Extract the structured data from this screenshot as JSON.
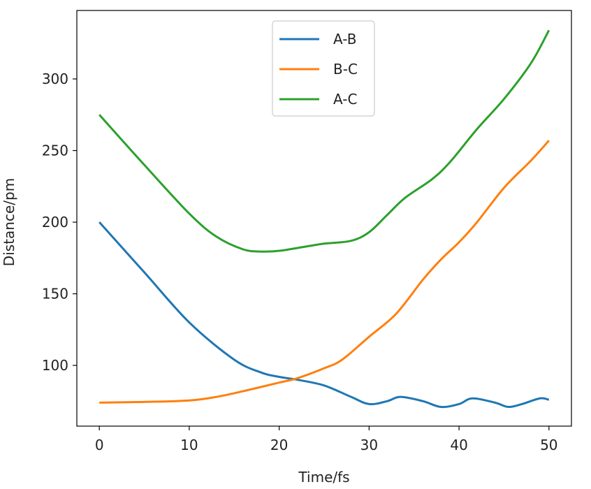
{
  "chart_data": {
    "type": "line",
    "title": "",
    "xlabel": "Time/fs",
    "ylabel": "Distance/pm",
    "xlim": [
      -2.5,
      52.5
    ],
    "ylim": [
      57.6,
      347.8
    ],
    "xticks": [
      0,
      10,
      20,
      30,
      40,
      50
    ],
    "yticks": [
      100,
      150,
      200,
      250,
      300
    ],
    "grid": false,
    "legend_position": "top-center",
    "series": [
      {
        "name": "A-B",
        "color": "#1f77b4",
        "x": [
          0,
          5,
          10,
          15,
          18,
          20,
          22,
          25,
          28,
          30,
          32,
          33.5,
          36,
          38,
          40,
          41.5,
          44,
          45.5,
          47,
          49,
          50
        ],
        "y": [
          200,
          165,
          130,
          104,
          95,
          92,
          90,
          86,
          78,
          73,
          75,
          78,
          75,
          71,
          73,
          77,
          74,
          71,
          73,
          77,
          76
        ]
      },
      {
        "name": "B-C",
        "color": "#ff7f0e",
        "x": [
          0,
          5,
          10,
          13,
          16,
          20,
          22,
          25,
          27,
          30,
          33,
          36,
          38,
          40,
          42,
          45,
          48,
          50
        ],
        "y": [
          74,
          74.5,
          75.5,
          78,
          82,
          88,
          91,
          98,
          104,
          120,
          136,
          160,
          174,
          186,
          200,
          224,
          243,
          257
        ]
      },
      {
        "name": "A-C",
        "color": "#2ca02c",
        "x": [
          0,
          5,
          10,
          13,
          16,
          18,
          20,
          23,
          25,
          28,
          30,
          32,
          34,
          37,
          39,
          42,
          45,
          48,
          50
        ],
        "y": [
          275,
          240,
          206,
          190,
          181,
          179.5,
          180,
          183,
          185,
          187,
          193,
          205,
          217,
          230,
          242,
          265,
          286,
          311,
          334
        ]
      }
    ]
  }
}
